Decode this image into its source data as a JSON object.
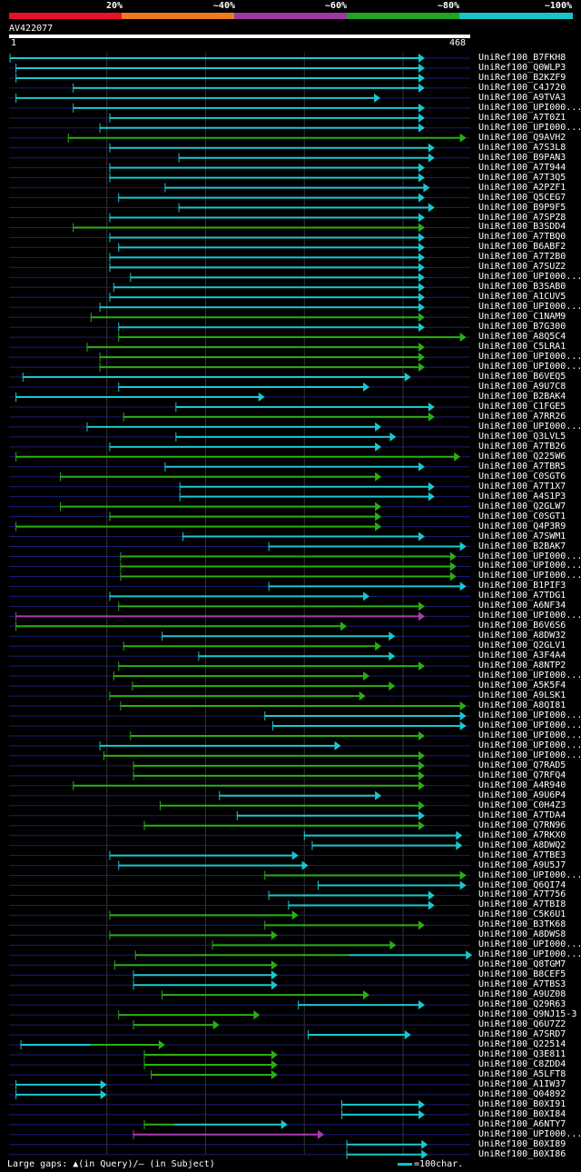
{
  "legend": {
    "labels": [
      "20%",
      "~40%",
      "~60%",
      "~80%",
      "~100%"
    ],
    "colors": [
      "#e8102a",
      "#f07a20",
      "#9a3aa0",
      "#1fa520",
      "#19c4c8"
    ]
  },
  "query": {
    "id": "AV422077",
    "start": "1",
    "end": "468",
    "length": 468
  },
  "colors": {
    "cyan": "#19c8d2",
    "green": "#2aae18",
    "purple": "#a83cb0",
    "line": "#1c1c74",
    "grid": "#333"
  },
  "hits": [
    {
      "name": "UniRef100_B7FKH8",
      "s": 2,
      "e": 422,
      "c": "cyan"
    },
    {
      "name": "UniRef100_Q0WLP3",
      "s": 8,
      "e": 422,
      "c": "cyan"
    },
    {
      "name": "UniRef100_B2KZF9",
      "s": 8,
      "e": 422,
      "c": "cyan"
    },
    {
      "name": "UniRef100_C4J720",
      "s": 66,
      "e": 422,
      "c": "cyan"
    },
    {
      "name": "UniRef100_A9TVA3",
      "s": 8,
      "e": 377,
      "c": "cyan"
    },
    {
      "name": "UniRef100_UPI000...",
      "s": 66,
      "e": 422,
      "c": "cyan"
    },
    {
      "name": "UniRef100_A7T0Z1",
      "s": 103,
      "e": 422,
      "c": "cyan"
    },
    {
      "name": "UniRef100_UPI000...",
      "s": 93,
      "e": 422,
      "c": "cyan"
    },
    {
      "name": "UniRef100_Q9AVH2",
      "s": 61,
      "e": 464,
      "c": "green"
    },
    {
      "name": "UniRef100_A7S3L8",
      "s": 103,
      "e": 432,
      "c": "cyan"
    },
    {
      "name": "UniRef100_B9PAN3",
      "s": 173,
      "e": 432,
      "c": "cyan"
    },
    {
      "name": "UniRef100_A7T944",
      "s": 103,
      "e": 422,
      "c": "cyan"
    },
    {
      "name": "UniRef100_A7T3Q5",
      "s": 103,
      "e": 422,
      "c": "cyan"
    },
    {
      "name": "UniRef100_A2PZF1",
      "s": 159,
      "e": 427,
      "c": "cyan"
    },
    {
      "name": "UniRef100_Q5CEG7",
      "s": 112,
      "e": 422,
      "c": "cyan"
    },
    {
      "name": "UniRef100_B9P9F5",
      "s": 173,
      "e": 432,
      "c": "cyan"
    },
    {
      "name": "UniRef100_A7SPZ8",
      "s": 103,
      "e": 422,
      "c": "cyan"
    },
    {
      "name": "UniRef100_B3SDD4",
      "s": 66,
      "e": 422,
      "c": "green"
    },
    {
      "name": "UniRef100_A7TBQ0",
      "s": 103,
      "e": 422,
      "c": "cyan"
    },
    {
      "name": "UniRef100_B6ABF2",
      "s": 112,
      "e": 422,
      "c": "cyan"
    },
    {
      "name": "UniRef100_A7T2B0",
      "s": 103,
      "e": 422,
      "c": "cyan"
    },
    {
      "name": "UniRef100_A7SUZ2",
      "s": 103,
      "e": 422,
      "c": "cyan"
    },
    {
      "name": "UniRef100_UPI000...",
      "s": 124,
      "e": 422,
      "c": "cyan"
    },
    {
      "name": "UniRef100_B3SAB0",
      "s": 107,
      "e": 422,
      "c": "cyan"
    },
    {
      "name": "UniRef100_A1CUV5",
      "s": 103,
      "e": 422,
      "c": "cyan"
    },
    {
      "name": "UniRef100_UPI000...",
      "s": 93,
      "e": 422,
      "c": "cyan"
    },
    {
      "name": "UniRef100_C1NAM9",
      "s": 84,
      "e": 422,
      "c": "green"
    },
    {
      "name": "UniRef100_B7G300",
      "s": 112,
      "e": 422,
      "c": "cyan"
    },
    {
      "name": "UniRef100_A8Q5C4",
      "s": 112,
      "e": 464,
      "c": "green"
    },
    {
      "name": "UniRef100_C5LRA1",
      "s": 80,
      "e": 422,
      "c": "green"
    },
    {
      "name": "UniRef100_UPI000...",
      "s": 93,
      "e": 422,
      "c": "green"
    },
    {
      "name": "UniRef100_UPI000...",
      "s": 93,
      "e": 422,
      "c": "green"
    },
    {
      "name": "UniRef100_B6VEQ5",
      "s": 15,
      "e": 408,
      "c": "cyan"
    },
    {
      "name": "UniRef100_A9U7C8",
      "s": 112,
      "e": 366,
      "c": "cyan"
    },
    {
      "name": "UniRef100_B2BAK4",
      "s": 8,
      "e": 260,
      "c": "cyan"
    },
    {
      "name": "UniRef100_C1FGE5",
      "s": 170,
      "e": 432,
      "c": "cyan"
    },
    {
      "name": "UniRef100_A7RR26",
      "s": 117,
      "e": 432,
      "c": "green"
    },
    {
      "name": "UniRef100_UPI000...",
      "s": 80,
      "e": 378,
      "c": "cyan"
    },
    {
      "name": "UniRef100_Q3LVL5",
      "s": 170,
      "e": 393,
      "c": "cyan"
    },
    {
      "name": "UniRef100_A7TB26",
      "s": 103,
      "e": 378,
      "c": "cyan"
    },
    {
      "name": "UniRef100_Q225W6",
      "s": 8,
      "e": 458,
      "c": "green"
    },
    {
      "name": "UniRef100_A7TBR5",
      "s": 159,
      "e": 422,
      "c": "cyan"
    },
    {
      "name": "UniRef100_C0SGT6",
      "s": 53,
      "e": 378,
      "c": "green"
    },
    {
      "name": "UniRef100_A7T1X7",
      "s": 174,
      "e": 432,
      "c": "cyan"
    },
    {
      "name": "UniRef100_A4S1P3",
      "s": 174,
      "e": 432,
      "c": "cyan"
    },
    {
      "name": "UniRef100_Q2GLW7",
      "s": 53,
      "e": 378,
      "c": "green"
    },
    {
      "name": "UniRef100_C0SGT1",
      "s": 103,
      "e": 378,
      "c": "green"
    },
    {
      "name": "UniRef100_Q4P3R9",
      "s": 8,
      "e": 378,
      "c": "green"
    },
    {
      "name": "UniRef100_A7SWM1",
      "s": 177,
      "e": 422,
      "c": "cyan"
    },
    {
      "name": "UniRef100_B2BAK7",
      "s": 264,
      "e": 464,
      "c": "cyan"
    },
    {
      "name": "UniRef100_UPI000...",
      "s": 114,
      "e": 454,
      "c": "green"
    },
    {
      "name": "UniRef100_UPI000...",
      "s": 114,
      "e": 454,
      "c": "green"
    },
    {
      "name": "UniRef100_UPI000...",
      "s": 114,
      "e": 454,
      "c": "green"
    },
    {
      "name": "UniRef100_B1PIF3",
      "s": 264,
      "e": 464,
      "c": "cyan"
    },
    {
      "name": "UniRef100_A7TDG1",
      "s": 103,
      "e": 366,
      "c": "cyan"
    },
    {
      "name": "UniRef100_A6NF34",
      "s": 112,
      "e": 422,
      "c": "green"
    },
    {
      "name": "UniRef100_UPI000...",
      "s": 8,
      "e": 422,
      "c": "purple"
    },
    {
      "name": "UniRef100_B6V6S6",
      "s": 8,
      "e": 343,
      "c": "green"
    },
    {
      "name": "UniRef100_A8DW32",
      "s": 156,
      "e": 392,
      "c": "cyan"
    },
    {
      "name": "UniRef100_Q2GLV1",
      "s": 117,
      "e": 378,
      "c": "green"
    },
    {
      "name": "UniRef100_A3F4A4",
      "s": 193,
      "e": 392,
      "c": "cyan"
    },
    {
      "name": "UniRef100_A8NTP2",
      "s": 112,
      "e": 422,
      "c": "green"
    },
    {
      "name": "UniRef100_UPI000...",
      "s": 107,
      "e": 366,
      "c": "green"
    },
    {
      "name": "UniRef100_A5K5F4",
      "s": 126,
      "e": 392,
      "c": "green"
    },
    {
      "name": "UniRef100_A9LSK1",
      "s": 103,
      "e": 362,
      "c": "green"
    },
    {
      "name": "UniRef100_A8QI81",
      "s": 114,
      "e": 464,
      "c": "green"
    },
    {
      "name": "UniRef100_UPI000...",
      "s": 260,
      "e": 464,
      "c": "cyan"
    },
    {
      "name": "UniRef100_UPI000...",
      "s": 268,
      "e": 464,
      "c": "cyan"
    },
    {
      "name": "UniRef100_UPI000...",
      "s": 124,
      "e": 422,
      "c": "green"
    },
    {
      "name": "UniRef100_UPI000...",
      "s": 93,
      "e": 337,
      "c": "cyan"
    },
    {
      "name": "UniRef100_UPI000...",
      "s": 97,
      "e": 422,
      "c": "green"
    },
    {
      "name": "UniRef100_Q7RAD5",
      "s": 127,
      "e": 422,
      "c": "green"
    },
    {
      "name": "UniRef100_Q7RFQ4",
      "s": 127,
      "e": 422,
      "c": "green"
    },
    {
      "name": "UniRef100_A4R940",
      "s": 66,
      "e": 422,
      "c": "green"
    },
    {
      "name": "UniRef100_A9U6P4",
      "s": 214,
      "e": 378,
      "c": "cyan"
    },
    {
      "name": "UniRef100_C0H4Z3",
      "s": 154,
      "e": 422,
      "c": "green"
    },
    {
      "name": "UniRef100_A7TDA4",
      "s": 232,
      "e": 422,
      "c": "cyan"
    },
    {
      "name": "UniRef100_Q7RN96",
      "s": 138,
      "e": 422,
      "c": "green"
    },
    {
      "name": "UniRef100_A7RKX0",
      "s": 300,
      "e": 460,
      "c": "cyan"
    },
    {
      "name": "UniRef100_A8DWQ2",
      "s": 308,
      "e": 460,
      "c": "cyan"
    },
    {
      "name": "UniRef100_A7TBE3",
      "s": 103,
      "e": 294,
      "c": "cyan"
    },
    {
      "name": "UniRef100_A9U5J7",
      "s": 112,
      "e": 304,
      "c": "cyan"
    },
    {
      "name": "UniRef100_UPI000...",
      "s": 260,
      "e": 464,
      "c": "green"
    },
    {
      "name": "UniRef100_Q6QI74",
      "s": 314,
      "e": 464,
      "c": "cyan"
    },
    {
      "name": "UniRef100_A7T756",
      "s": 264,
      "e": 432,
      "c": "cyan"
    },
    {
      "name": "UniRef100_A7TBI8",
      "s": 284,
      "e": 432,
      "c": "cyan"
    },
    {
      "name": "UniRef100_C5K6U1",
      "s": 103,
      "e": 294,
      "c": "green"
    },
    {
      "name": "UniRef100_B3TK68",
      "s": 260,
      "e": 422,
      "c": "green"
    },
    {
      "name": "UniRef100_A8DWS8",
      "s": 103,
      "e": 273,
      "c": "green"
    },
    {
      "name": "UniRef100_UPI000...",
      "s": 207,
      "e": 393,
      "c": "green"
    },
    {
      "name": "UniRef100_UPI000...",
      "s": 129,
      "e": 470,
      "c": "green",
      "c2": "cyan",
      "split": 345
    },
    {
      "name": "UniRef100_Q8TGM7",
      "s": 108,
      "e": 273,
      "c": "green"
    },
    {
      "name": "UniRef100_B8CEF5",
      "s": 127,
      "e": 273,
      "c": "cyan"
    },
    {
      "name": "UniRef100_A7TBS3",
      "s": 127,
      "e": 273,
      "c": "cyan"
    },
    {
      "name": "UniRef100_A9UZ08",
      "s": 156,
      "e": 366,
      "c": "green"
    },
    {
      "name": "UniRef100_Q29R63",
      "s": 294,
      "e": 422,
      "c": "cyan"
    },
    {
      "name": "UniRef100_Q9NJ15-3",
      "s": 112,
      "e": 255,
      "c": "green"
    },
    {
      "name": "UniRef100_Q6U7Z2",
      "s": 127,
      "e": 214,
      "c": "green"
    },
    {
      "name": "UniRef100_A7SRD7",
      "s": 304,
      "e": 408,
      "c": "cyan"
    },
    {
      "name": "UniRef100_Q22514",
      "s": 13,
      "e": 159,
      "c": "cyan",
      "c2": "green",
      "split": 84
    },
    {
      "name": "UniRef100_Q3E811",
      "s": 138,
      "e": 273,
      "c": "green"
    },
    {
      "name": "UniRef100_C8ZDD4",
      "s": 138,
      "e": 273,
      "c": "green"
    },
    {
      "name": "UniRef100_A5LFT8",
      "s": 145,
      "e": 273,
      "c": "green"
    },
    {
      "name": "UniRef100_A1IW37",
      "s": 8,
      "e": 100,
      "c": "cyan"
    },
    {
      "name": "UniRef100_Q04892",
      "s": 8,
      "e": 100,
      "c": "cyan"
    },
    {
      "name": "UniRef100_B0XI91",
      "s": 338,
      "e": 422,
      "c": "cyan"
    },
    {
      "name": "UniRef100_B0XI84",
      "s": 338,
      "e": 422,
      "c": "cyan"
    },
    {
      "name": "UniRef100_A6NTY7",
      "s": 138,
      "e": 283,
      "c": "green",
      "c2": "cyan",
      "split": 168
    },
    {
      "name": "UniRef100_UPI000...",
      "s": 127,
      "e": 320,
      "c": "purple"
    },
    {
      "name": "UniRef100_B0XI89",
      "s": 343,
      "e": 425,
      "c": "cyan"
    },
    {
      "name": "UniRef100_B0XI86",
      "s": 343,
      "e": 425,
      "c": "cyan"
    }
  ],
  "footer": {
    "text": "Large gaps: ▲(in Query)/— (in Subject)",
    "scale_label": "=100char."
  }
}
